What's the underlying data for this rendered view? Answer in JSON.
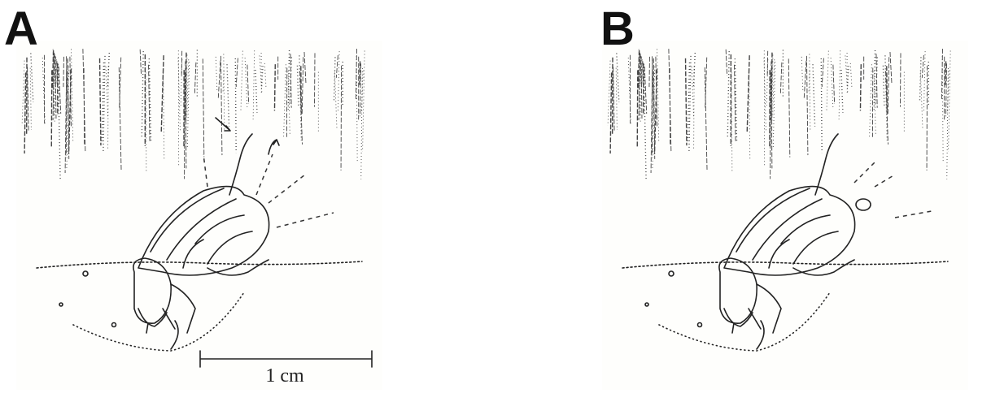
{
  "panels": [
    {
      "label": "A",
      "scale_bar": "1 cm"
    },
    {
      "label": "B"
    }
  ]
}
